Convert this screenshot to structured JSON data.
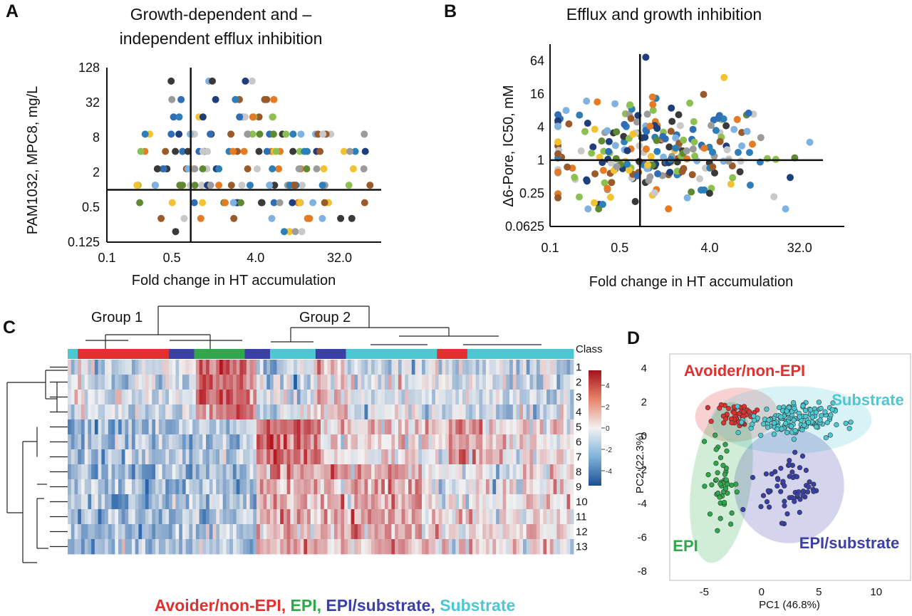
{
  "panels": {
    "A": {
      "letter": "A",
      "title_line1": "Growth-dependent and –",
      "title_line2": "independent efflux inhibition",
      "xlabel": "Fold change in HT accumulation",
      "ylabel": "PAM1032, MPC8, mg/L"
    },
    "B": {
      "letter": "B",
      "title": "Efflux and growth inhibition",
      "xlabel": "Fold change in HT accumulation",
      "ylabel": "Δ6-Pore, IC50, mM"
    },
    "C": {
      "letter": "C",
      "group1": "Group 1",
      "group2": "Group 2",
      "class_label": "Class",
      "legend_parts": [
        "Avoider/non-EPI,",
        "EPI,",
        "EPI/substrate,",
        "Substrate"
      ]
    },
    "D": {
      "letter": "D",
      "xlabel": "PC1 (46.8%)",
      "ylabel": "PC2 (22.3%)",
      "labels": [
        "Avoider/non-EPI",
        "Substrate",
        "EPI",
        "EPI/substrate"
      ]
    }
  },
  "colors": {
    "avoider": "#e03030",
    "epi": "#2ea84a",
    "epi_substrate": "#3b3fa8",
    "substrate": "#4cc8d2",
    "heat_low": "#1f5fa8",
    "heat_mid": "#f2f2f2",
    "heat_high": "#b4161e"
  },
  "chart_data": [
    {
      "panel": "A",
      "type": "scatter",
      "title": "Growth-dependent and – independent efflux inhibition",
      "xlabel": "Fold change in HT accumulation",
      "ylabel": "PAM1032, MPC8, mg/L",
      "x_scale": "log2",
      "y_scale": "log2",
      "xlim": [
        0.1,
        90
      ],
      "ylim": [
        0.125,
        128
      ],
      "x_ticks": [
        "0.1",
        "0.5",
        "4.0",
        "32.0"
      ],
      "y_ticks": [
        "0.125",
        "0.5",
        "2",
        "8",
        "32",
        "128"
      ],
      "threshold_x": 0.8,
      "threshold_y": 1,
      "y_levels": [
        0.19,
        0.32,
        0.6,
        1.2,
        2.3,
        4.6,
        9.1,
        18,
        36,
        75
      ],
      "points_per_level": [
        5,
        10,
        24,
        32,
        24,
        30,
        28,
        12,
        8,
        5
      ]
    },
    {
      "panel": "B",
      "type": "scatter",
      "title": "Efflux and growth inhibition",
      "xlabel": "Fold change in HT accumulation",
      "ylabel": "Δ6-Pore, IC50, mM",
      "x_scale": "log2",
      "y_scale": "log2",
      "xlim": [
        0.1,
        90
      ],
      "ylim": [
        0.0625,
        128
      ],
      "x_ticks": [
        "0.1",
        "0.5",
        "4.0",
        "32.0"
      ],
      "y_ticks": [
        "0.0625",
        "0.25",
        "1",
        "4",
        "16",
        "64"
      ],
      "threshold_x": 0.8,
      "threshold_y": 1,
      "y_range_points": [
        0.13,
        80
      ],
      "n_points": 260
    },
    {
      "panel": "C",
      "type": "heatmap",
      "row_labels": [
        "1",
        "2",
        "3",
        "4",
        "5",
        "6",
        "7",
        "8",
        "9",
        "10",
        "11",
        "12",
        "13"
      ],
      "colorbar_ticks": [
        "4",
        "2",
        "0",
        "-2",
        "-4"
      ],
      "colorbar_range": [
        -5,
        5
      ],
      "n_columns": 150,
      "class_segments": [
        {
          "class": "substrate",
          "width": 0.02
        },
        {
          "class": "avoider",
          "width": 0.18
        },
        {
          "class": "epi_substrate",
          "width": 0.05
        },
        {
          "class": "epi",
          "width": 0.1
        },
        {
          "class": "epi_substrate",
          "width": 0.05
        },
        {
          "class": "substrate",
          "width": 0.09
        },
        {
          "class": "epi_substrate",
          "width": 0.06
        },
        {
          "class": "substrate",
          "width": 0.18
        },
        {
          "class": "avoider",
          "width": 0.06
        },
        {
          "class": "substrate",
          "width": 0.21
        }
      ]
    },
    {
      "panel": "D",
      "type": "scatter",
      "xlabel": "PC1 (46.8%)",
      "ylabel": "PC2 (22.3%)",
      "xlim": [
        -8,
        13
      ],
      "ylim": [
        -8.6,
        4.8
      ],
      "x_ticks": [
        -5,
        0,
        5,
        10
      ],
      "y_ticks": [
        4,
        2,
        0,
        -2,
        -4,
        -6,
        -8
      ],
      "series": [
        {
          "name": "Avoider/non-EPI",
          "color": "#e03030",
          "center": [
            -2.2,
            1.2
          ],
          "spread": [
            1.5,
            0.6
          ],
          "n": 45
        },
        {
          "name": "Substrate",
          "color": "#4cc8d2",
          "center": [
            2.6,
            0.9
          ],
          "spread": [
            3.3,
            0.9
          ],
          "n": 150
        },
        {
          "name": "EPI",
          "color": "#2ea84a",
          "center": [
            -3.5,
            -2.8
          ],
          "spread": [
            1.1,
            2.4
          ],
          "n": 45
        },
        {
          "name": "EPI/substrate",
          "color": "#3b3fa8",
          "center": [
            2.4,
            -3.0
          ],
          "spread": [
            2.2,
            1.7
          ],
          "n": 60
        }
      ]
    }
  ]
}
